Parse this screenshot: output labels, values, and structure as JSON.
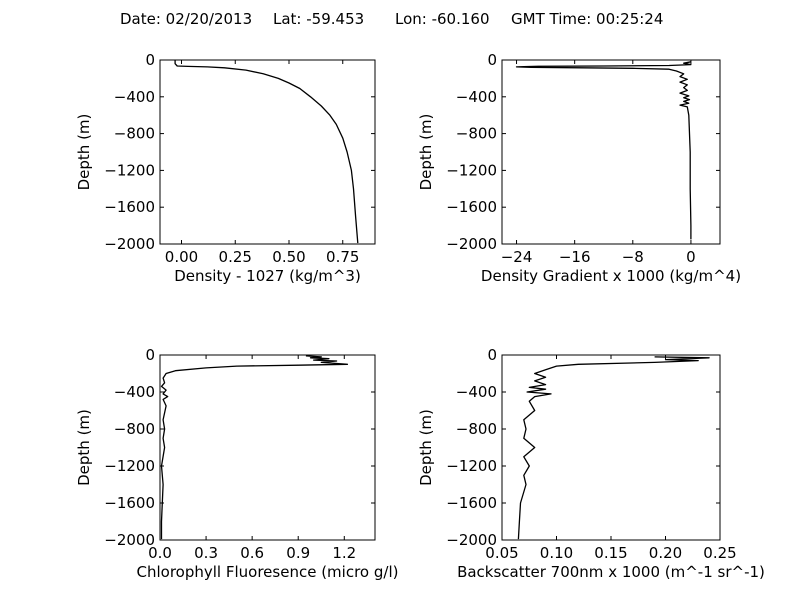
{
  "header": {
    "date_label": "Date: 02/20/2013",
    "lat_label": "Lat:  -59.453",
    "lon_label": "Lon:  -60.160",
    "time_label": "GMT Time: 00:25:24"
  },
  "colors": {
    "line": "#000000",
    "axes": "#000000",
    "background": "#ffffff"
  },
  "chart_data": [
    {
      "type": "line",
      "title": "",
      "xlabel": "Density - 1027 (kg/m^3)",
      "ylabel": "Depth (m)",
      "xlim": [
        -0.1,
        0.9
      ],
      "ylim": [
        -2000,
        0
      ],
      "xticks": [
        0.0,
        0.25,
        0.5,
        0.75
      ],
      "xtick_labels": [
        "0.00",
        "0.25",
        "0.50",
        "0.75"
      ],
      "yticks": [
        0,
        -400,
        -800,
        -1200,
        -1600,
        -2000
      ],
      "ytick_labels": [
        "0",
        "−400",
        "−800",
        "−1200",
        "−1600",
        "−2000"
      ],
      "grid": false,
      "series": [
        {
          "x": [
            -0.03,
            -0.03,
            -0.02,
            0.03,
            0.12,
            0.2,
            0.3,
            0.38,
            0.45,
            0.5,
            0.55,
            0.6,
            0.65,
            0.69,
            0.72,
            0.75,
            0.77,
            0.79,
            0.8,
            0.81,
            0.82
          ],
          "y": [
            -5,
            -40,
            -65,
            -70,
            -75,
            -85,
            -110,
            -150,
            -200,
            -250,
            -310,
            -400,
            -500,
            -600,
            -700,
            -850,
            -1000,
            -1200,
            -1400,
            -1700,
            -1990
          ]
        }
      ]
    },
    {
      "type": "line",
      "title": "",
      "xlabel": "Density Gradient x 1000 (kg/m^4)",
      "ylabel": "Depth (m)",
      "xlim": [
        -26,
        4
      ],
      "ylim": [
        -2000,
        0
      ],
      "xticks": [
        -24,
        -16,
        -8,
        0
      ],
      "xtick_labels": [
        "−24",
        "−16",
        "−8",
        "0"
      ],
      "yticks": [
        0,
        -400,
        -800,
        -1200,
        -1600,
        -2000
      ],
      "ytick_labels": [
        "0",
        "−400",
        "−800",
        "−1200",
        "−1600",
        "−2000"
      ],
      "grid": false,
      "series": [
        {
          "x": [
            0,
            -1,
            0,
            -3,
            -12,
            -21,
            -23,
            -24,
            -22,
            -15,
            -8,
            -3,
            -2,
            -1,
            -1.5,
            -0.5,
            -1.5,
            -0.5,
            -1,
            -0.5,
            -1.5,
            -0.3,
            -1,
            -0.2,
            -1,
            -0.3,
            -1.5,
            -0.5,
            -0.3,
            -0.2,
            -0.1,
            -0.1,
            0,
            0
          ],
          "y": [
            -20,
            -35,
            -50,
            -60,
            -65,
            -68,
            -72,
            -75,
            -80,
            -85,
            -90,
            -100,
            -120,
            -150,
            -180,
            -210,
            -240,
            -270,
            -300,
            -330,
            -360,
            -390,
            -410,
            -430,
            -450,
            -470,
            -490,
            -510,
            -600,
            -800,
            -1000,
            -1400,
            -1800,
            -1950
          ]
        }
      ]
    },
    {
      "type": "line",
      "title": "",
      "xlabel": "Chlorophyll Fluoresence (micro g/l)",
      "ylabel": "Depth (m)",
      "xlim": [
        0,
        1.4
      ],
      "ylim": [
        -2000,
        0
      ],
      "xticks": [
        0.0,
        0.3,
        0.6,
        0.9,
        1.2
      ],
      "xtick_labels": [
        "0.0",
        "0.3",
        "0.6",
        "0.9",
        "1.2"
      ],
      "yticks": [
        0,
        -400,
        -800,
        -1200,
        -1600,
        -2000
      ],
      "ytick_labels": [
        "0",
        "−400",
        "−800",
        "−1200",
        "−1600",
        "−2000"
      ],
      "grid": false,
      "series": [
        {
          "x": [
            0.95,
            1.05,
            0.98,
            1.1,
            1.0,
            1.15,
            1.05,
            1.22,
            0.9,
            0.5,
            0.3,
            0.1,
            0.04,
            0.02,
            0.03,
            0.01,
            0.04,
            0.02,
            0.05,
            0.02,
            0.04,
            0.02,
            0.03,
            0.02,
            0.03,
            0.01,
            0.02,
            0.015,
            0.01,
            0.01,
            0.01
          ],
          "y": [
            -10,
            -20,
            -30,
            -40,
            -55,
            -65,
            -80,
            -100,
            -110,
            -120,
            -140,
            -170,
            -200,
            -250,
            -300,
            -340,
            -380,
            -420,
            -450,
            -480,
            -550,
            -700,
            -800,
            -900,
            -1000,
            -1200,
            -1400,
            -1600,
            -1800,
            -1900,
            -1990
          ]
        }
      ]
    },
    {
      "type": "line",
      "title": "",
      "xlabel": "Backscatter 700nm x 1000 (m^-1 sr^-1)",
      "ylabel": "Depth (m)",
      "xlim": [
        0.05,
        0.25
      ],
      "ylim": [
        -2000,
        0
      ],
      "xticks": [
        0.05,
        0.1,
        0.15,
        0.2,
        0.25
      ],
      "xtick_labels": [
        "0.05",
        "0.10",
        "0.15",
        "0.20",
        "0.25"
      ],
      "yticks": [
        0,
        -400,
        -800,
        -1200,
        -1600,
        -2000
      ],
      "ytick_labels": [
        "0",
        "−400",
        "−800",
        "−1200",
        "−1600",
        "−2000"
      ],
      "grid": false,
      "series": [
        {
          "x": [
            0.19,
            0.24,
            0.2,
            0.23,
            0.19,
            0.12,
            0.1,
            0.09,
            0.08,
            0.09,
            0.08,
            0.09,
            0.075,
            0.09,
            0.073,
            0.095,
            0.08,
            0.075,
            0.08,
            0.07,
            0.072,
            0.07,
            0.08,
            0.07,
            0.075,
            0.07,
            0.072,
            0.067,
            0.066,
            0.065
          ],
          "y": [
            -20,
            -30,
            -50,
            -60,
            -80,
            -100,
            -120,
            -160,
            -200,
            -240,
            -280,
            -320,
            -350,
            -370,
            -400,
            -420,
            -450,
            -500,
            -600,
            -700,
            -800,
            -900,
            -1000,
            -1100,
            -1200,
            -1300,
            -1400,
            -1600,
            -1800,
            -1990
          ]
        }
      ]
    }
  ]
}
